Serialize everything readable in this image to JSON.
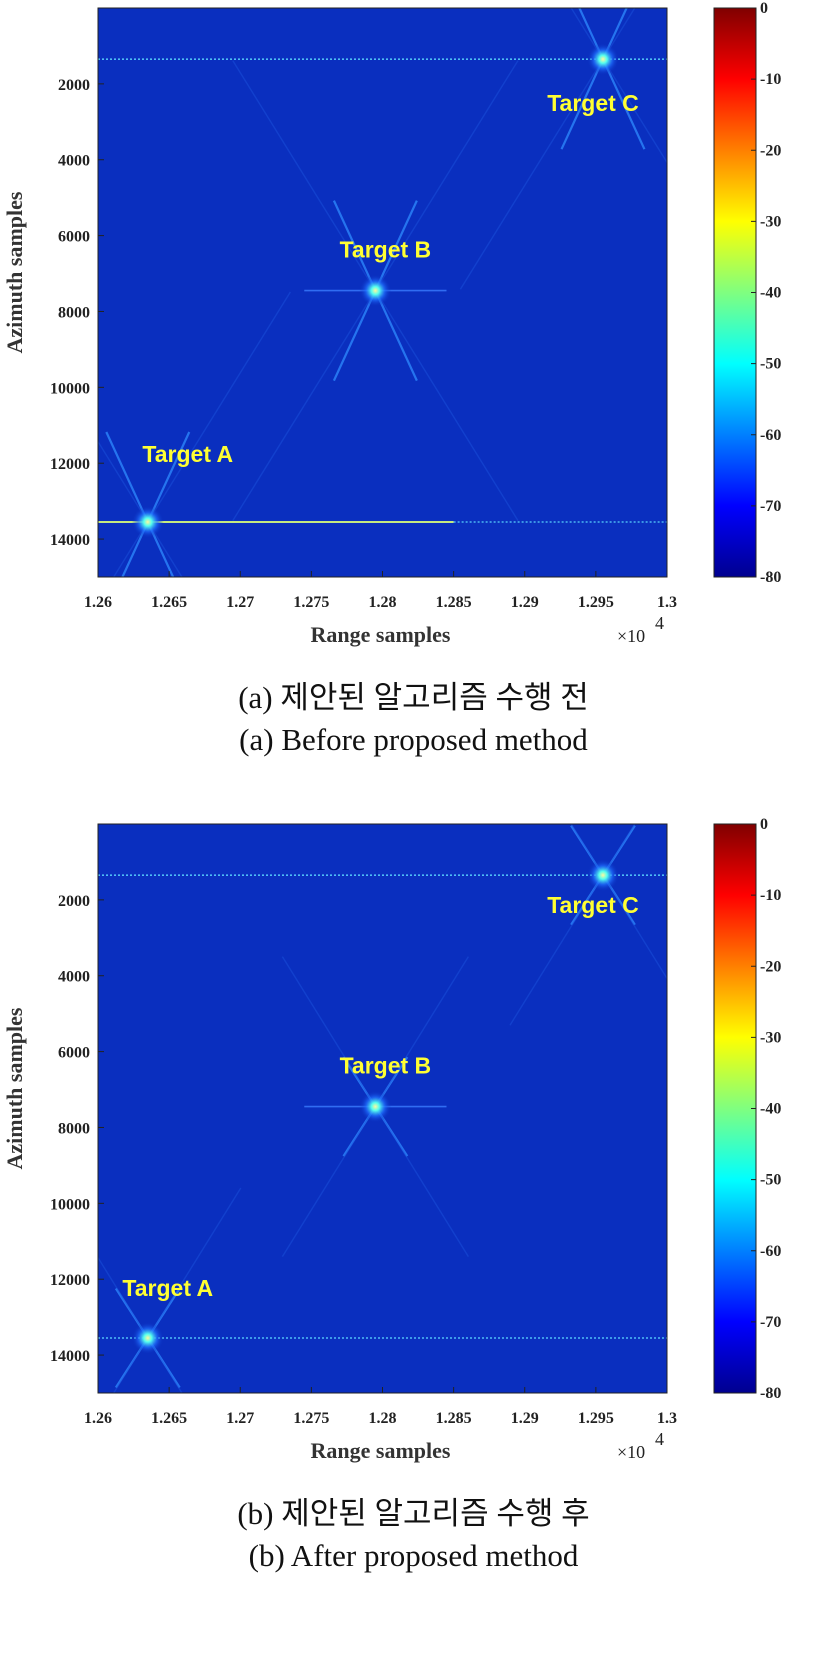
{
  "chart_data": [
    {
      "type": "heatmap",
      "title": "",
      "xlabel": "Range samples",
      "ylabel": "Azimuth samples",
      "x_multiplier": "×10",
      "x_multiplier_exponent": "4",
      "xlim": [
        1.26,
        1.3
      ],
      "ylim": [
        0,
        15000
      ],
      "y_reversed": true,
      "x_ticks": [
        "1.26",
        "1.265",
        "1.27",
        "1.275",
        "1.28",
        "1.285",
        "1.29",
        "1.295",
        "1.3"
      ],
      "y_ticks": [
        "2000",
        "4000",
        "6000",
        "8000",
        "10000",
        "12000",
        "14000"
      ],
      "colorbar": {
        "min": -80,
        "max": 0,
        "ticks": [
          "0",
          "-10",
          "-20",
          "-30",
          "-40",
          "-50",
          "-60",
          "-70",
          "-80"
        ]
      },
      "targets": [
        {
          "name": "Target A",
          "x": 1.2635,
          "y": 13550
        },
        {
          "name": "Target B",
          "x": 1.2795,
          "y": 7450
        },
        {
          "name": "Target C",
          "x": 1.2955,
          "y": 1350
        }
      ],
      "caption_ko": "(a) 제안된 알고리즘 수행 전",
      "caption_en": "(a) Before proposed method"
    },
    {
      "type": "heatmap",
      "title": "",
      "xlabel": "Range samples",
      "ylabel": "Azimuth samples",
      "x_multiplier": "×10",
      "x_multiplier_exponent": "4",
      "xlim": [
        1.26,
        1.3
      ],
      "ylim": [
        0,
        15000
      ],
      "y_reversed": true,
      "x_ticks": [
        "1.26",
        "1.265",
        "1.27",
        "1.275",
        "1.28",
        "1.285",
        "1.29",
        "1.295",
        "1.3"
      ],
      "y_ticks": [
        "2000",
        "4000",
        "6000",
        "8000",
        "10000",
        "12000",
        "14000"
      ],
      "colorbar": {
        "min": -80,
        "max": 0,
        "ticks": [
          "0",
          "-10",
          "-20",
          "-30",
          "-40",
          "-50",
          "-60",
          "-70",
          "-80"
        ]
      },
      "targets": [
        {
          "name": "Target A",
          "x": 1.2635,
          "y": 13550
        },
        {
          "name": "Target B",
          "x": 1.2795,
          "y": 7450
        },
        {
          "name": "Target C",
          "x": 1.2955,
          "y": 1350
        }
      ],
      "caption_ko": "(b) 제안된 알고리즘 수행 후",
      "caption_en": "(b) After proposed method"
    }
  ]
}
